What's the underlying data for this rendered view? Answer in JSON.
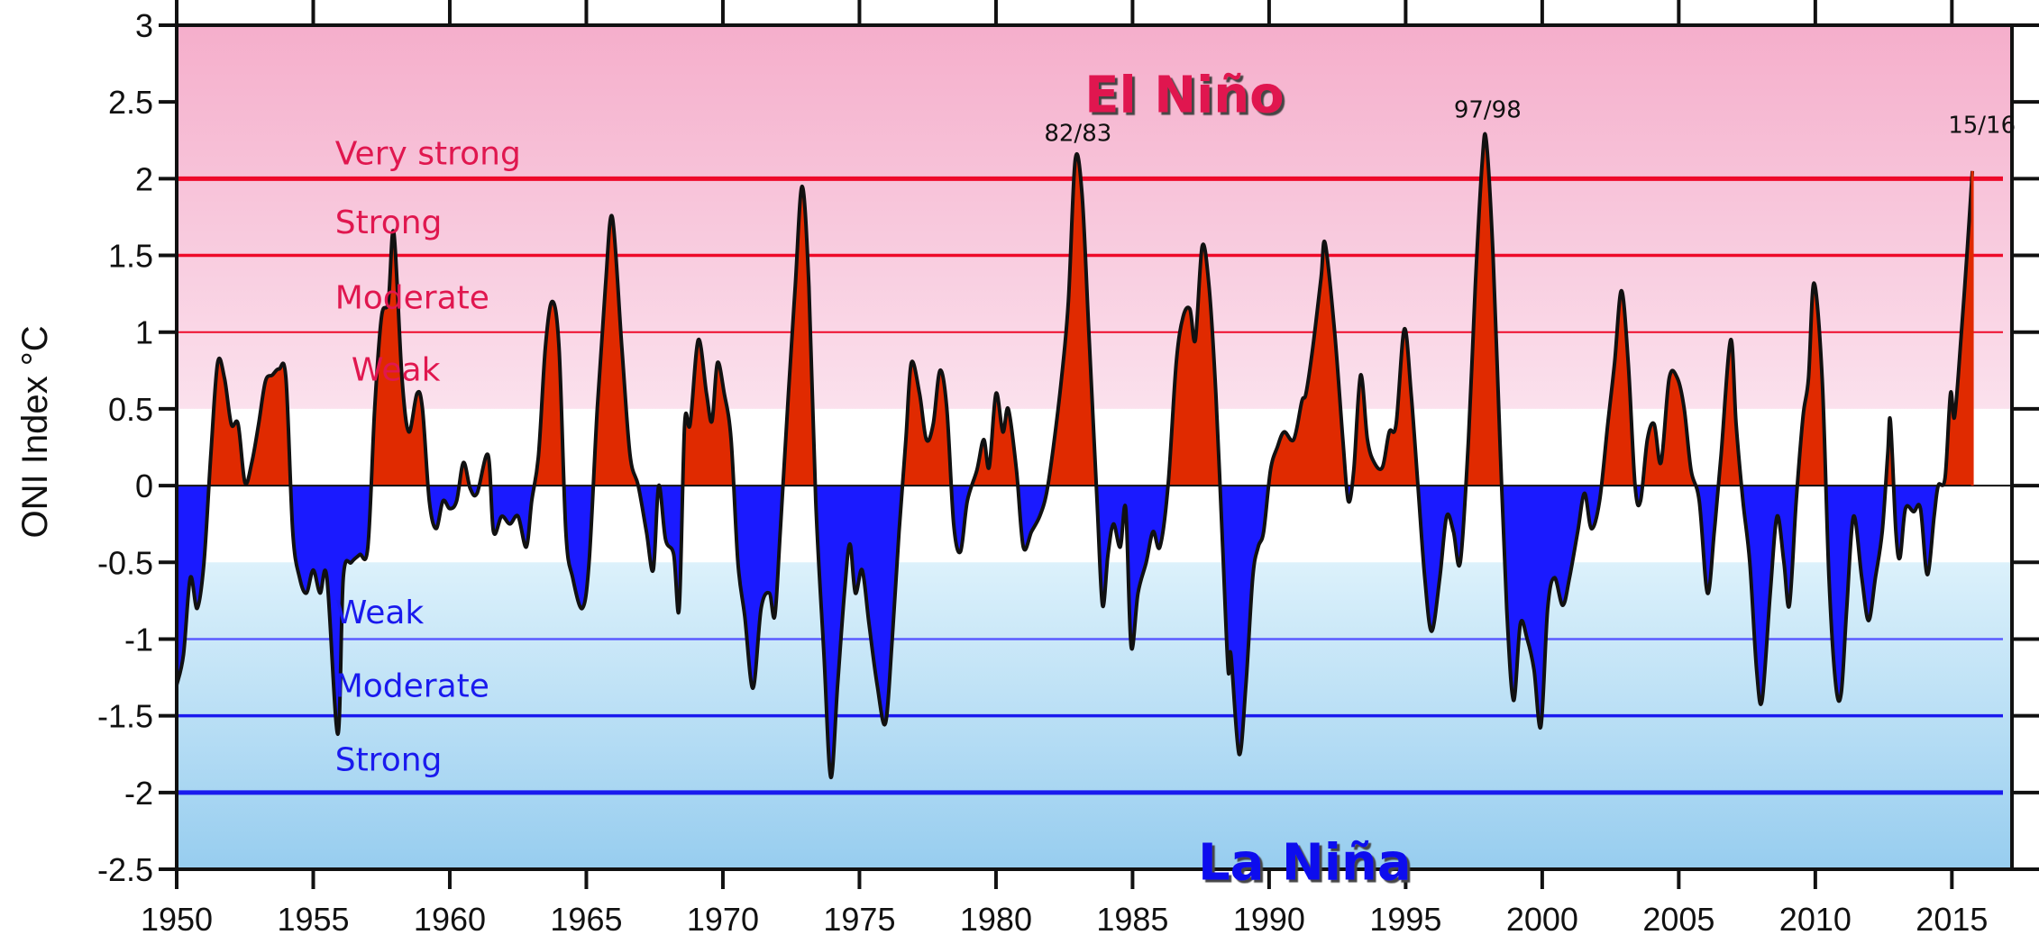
{
  "chart_data": {
    "type": "area",
    "title": "",
    "xlabel": "",
    "ylabel": "ONI Index  °C",
    "xlim": [
      1950,
      2017.2
    ],
    "ylim": [
      -2.5,
      3
    ],
    "x_ticks": [
      "1950",
      "1955",
      "1960",
      "1965",
      "1970",
      "1975",
      "1980",
      "1985",
      "1990",
      "1995",
      "2000",
      "2005",
      "2010",
      "2015"
    ],
    "y_ticks": [
      "3",
      "2.5",
      "2",
      "1.5",
      "1",
      "0.5",
      "0",
      "-0.5",
      "-1",
      "-1.5",
      "-2",
      "-2.5"
    ],
    "grid": false,
    "colors": {
      "positive_fill": "#e02a00",
      "negative_fill": "#1a1aff",
      "line": "#111111",
      "el_nino_text": "#e0174f",
      "la_nina_text": "#1010ee",
      "el_nino_bg_top": "#f5aecb",
      "el_nino_bg_bottom": "#fbe1ed",
      "la_nina_bg_top": "#dcf1fb",
      "la_nina_bg_bottom": "#97cdef"
    },
    "regions": [
      {
        "label": "El Niño",
        "color": "#e0174f"
      },
      {
        "label": "La Niña",
        "color": "#1010ee"
      }
    ],
    "thresholds": [
      {
        "value": 2,
        "label": "Very strong",
        "color": "#ee0a2a",
        "side": "el_nino"
      },
      {
        "value": 1.5,
        "label": "Strong",
        "color": "#ee0a2a",
        "side": "el_nino"
      },
      {
        "value": 1,
        "label": "Moderate",
        "color": "#ee0a2a",
        "side": "el_nino"
      },
      {
        "value": 0.5,
        "label": "Weak",
        "color": "#ee0a2a",
        "side": "el_nino"
      },
      {
        "value": -0.5,
        "label": "Weak",
        "color": "#1a1aee",
        "side": "la_nina"
      },
      {
        "value": -1,
        "label": "Moderate",
        "color": "#1a1aee",
        "side": "la_nina"
      },
      {
        "value": -1.5,
        "label": "Strong",
        "color": "#1a1aee",
        "side": "la_nina"
      },
      {
        "value": -2,
        "label": "",
        "color": "#1a1aee",
        "side": "la_nina"
      }
    ],
    "annotations": [
      {
        "text": "82/83",
        "x": 1983,
        "y": 2.3
      },
      {
        "text": "97/98",
        "x": 1998,
        "y": 2.45
      },
      {
        "text": "15/16",
        "x": 2016.1,
        "y": 2.35
      }
    ],
    "series": [
      {
        "points": [
          [
            1950,
            -1.3
          ],
          [
            1950.25,
            -1.1
          ],
          [
            1950.5,
            -0.6
          ],
          [
            1950.75,
            -0.8
          ],
          [
            1951,
            -0.5
          ],
          [
            1951.25,
            0.2
          ],
          [
            1951.5,
            0.8
          ],
          [
            1951.75,
            0.7
          ],
          [
            1952,
            0.4
          ],
          [
            1952.25,
            0.4
          ],
          [
            1952.5,
            0.02
          ],
          [
            1952.75,
            0.15
          ],
          [
            1953,
            0.4
          ],
          [
            1953.25,
            0.68
          ],
          [
            1953.5,
            0.72
          ],
          [
            1953.75,
            0.76
          ],
          [
            1954,
            0.7
          ],
          [
            1954.25,
            -0.3
          ],
          [
            1954.5,
            -0.6
          ],
          [
            1954.75,
            -0.7
          ],
          [
            1955,
            -0.55
          ],
          [
            1955.25,
            -0.7
          ],
          [
            1955.5,
            -0.6
          ],
          [
            1955.9,
            -1.62
          ],
          [
            1956.1,
            -0.6
          ],
          [
            1956.4,
            -0.5
          ],
          [
            1956.7,
            -0.45
          ],
          [
            1957,
            -0.4
          ],
          [
            1957.25,
            0.5
          ],
          [
            1957.5,
            1.1
          ],
          [
            1957.75,
            1.2
          ],
          [
            1957.95,
            1.65
          ],
          [
            1958.25,
            0.7
          ],
          [
            1958.5,
            0.35
          ],
          [
            1958.8,
            0.6
          ],
          [
            1959,
            0.5
          ],
          [
            1959.25,
            -0.1
          ],
          [
            1959.5,
            -0.28
          ],
          [
            1959.75,
            -0.1
          ],
          [
            1960,
            -0.15
          ],
          [
            1960.25,
            -0.1
          ],
          [
            1960.5,
            0.15
          ],
          [
            1960.75,
            -0.02
          ],
          [
            1961,
            -0.05
          ],
          [
            1961.4,
            0.2
          ],
          [
            1961.6,
            -0.3
          ],
          [
            1961.9,
            -0.2
          ],
          [
            1962.2,
            -0.25
          ],
          [
            1962.5,
            -0.2
          ],
          [
            1962.8,
            -0.4
          ],
          [
            1963,
            -0.1
          ],
          [
            1963.25,
            0.2
          ],
          [
            1963.5,
            0.9
          ],
          [
            1963.75,
            1.2
          ],
          [
            1964,
            0.9
          ],
          [
            1964.25,
            -0.3
          ],
          [
            1964.5,
            -0.6
          ],
          [
            1964.85,
            -0.8
          ],
          [
            1965.1,
            -0.5
          ],
          [
            1965.4,
            0.5
          ],
          [
            1965.7,
            1.3
          ],
          [
            1965.95,
            1.75
          ],
          [
            1966.3,
            0.9
          ],
          [
            1966.6,
            0.2
          ],
          [
            1966.9,
            0.0
          ],
          [
            1967.2,
            -0.3
          ],
          [
            1967.45,
            -0.55
          ],
          [
            1967.65,
            0.0
          ],
          [
            1967.9,
            -0.35
          ],
          [
            1968.2,
            -0.45
          ],
          [
            1968.4,
            -0.8
          ],
          [
            1968.6,
            0.4
          ],
          [
            1968.8,
            0.4
          ],
          [
            1969.1,
            0.95
          ],
          [
            1969.4,
            0.6
          ],
          [
            1969.6,
            0.42
          ],
          [
            1969.8,
            0.8
          ],
          [
            1970.05,
            0.6
          ],
          [
            1970.3,
            0.3
          ],
          [
            1970.55,
            -0.5
          ],
          [
            1970.8,
            -0.85
          ],
          [
            1971.1,
            -1.32
          ],
          [
            1971.4,
            -0.8
          ],
          [
            1971.7,
            -0.7
          ],
          [
            1971.9,
            -0.85
          ],
          [
            1972.1,
            -0.3
          ],
          [
            1972.4,
            0.6
          ],
          [
            1972.65,
            1.3
          ],
          [
            1972.9,
            1.95
          ],
          [
            1973.15,
            1.3
          ],
          [
            1973.4,
            -0.1
          ],
          [
            1973.7,
            -1.1
          ],
          [
            1973.95,
            -1.9
          ],
          [
            1974.2,
            -1.3
          ],
          [
            1974.45,
            -0.7
          ],
          [
            1974.65,
            -0.38
          ],
          [
            1974.85,
            -0.7
          ],
          [
            1975.1,
            -0.55
          ],
          [
            1975.35,
            -0.9
          ],
          [
            1975.65,
            -1.3
          ],
          [
            1975.95,
            -1.55
          ],
          [
            1976.2,
            -1.0
          ],
          [
            1976.45,
            -0.3
          ],
          [
            1976.7,
            0.3
          ],
          [
            1976.9,
            0.8
          ],
          [
            1977.2,
            0.6
          ],
          [
            1977.45,
            0.3
          ],
          [
            1977.7,
            0.4
          ],
          [
            1977.95,
            0.75
          ],
          [
            1978.2,
            0.5
          ],
          [
            1978.45,
            -0.25
          ],
          [
            1978.7,
            -0.43
          ],
          [
            1978.95,
            -0.1
          ],
          [
            1979.3,
            0.1
          ],
          [
            1979.55,
            0.3
          ],
          [
            1979.75,
            0.12
          ],
          [
            1980,
            0.6
          ],
          [
            1980.25,
            0.35
          ],
          [
            1980.45,
            0.5
          ],
          [
            1980.75,
            0.1
          ],
          [
            1981,
            -0.4
          ],
          [
            1981.3,
            -0.3
          ],
          [
            1981.6,
            -0.2
          ],
          [
            1981.85,
            -0.05
          ],
          [
            1982.1,
            0.25
          ],
          [
            1982.4,
            0.7
          ],
          [
            1982.65,
            1.2
          ],
          [
            1982.9,
            2.12
          ],
          [
            1983.15,
            1.9
          ],
          [
            1983.4,
            1.0
          ],
          [
            1983.7,
            -0.1
          ],
          [
            1983.9,
            -0.78
          ],
          [
            1984.1,
            -0.45
          ],
          [
            1984.3,
            -0.25
          ],
          [
            1984.55,
            -0.4
          ],
          [
            1984.75,
            -0.15
          ],
          [
            1984.95,
            -1.05
          ],
          [
            1985.2,
            -0.7
          ],
          [
            1985.5,
            -0.5
          ],
          [
            1985.75,
            -0.3
          ],
          [
            1986,
            -0.4
          ],
          [
            1986.3,
            0.0
          ],
          [
            1986.6,
            0.8
          ],
          [
            1986.85,
            1.1
          ],
          [
            1987.1,
            1.15
          ],
          [
            1987.3,
            0.95
          ],
          [
            1987.55,
            1.56
          ],
          [
            1987.8,
            1.3
          ],
          [
            1988.05,
            0.6
          ],
          [
            1988.3,
            -0.4
          ],
          [
            1988.5,
            -1.2
          ],
          [
            1988.6,
            -1.1
          ],
          [
            1988.9,
            -1.75
          ],
          [
            1989.15,
            -1.3
          ],
          [
            1989.4,
            -0.6
          ],
          [
            1989.6,
            -0.4
          ],
          [
            1989.8,
            -0.3
          ],
          [
            1990.05,
            0.1
          ],
          [
            1990.3,
            0.25
          ],
          [
            1990.55,
            0.35
          ],
          [
            1990.9,
            0.3
          ],
          [
            1991.2,
            0.55
          ],
          [
            1991.35,
            0.6
          ],
          [
            1991.6,
            0.9
          ],
          [
            1991.9,
            1.35
          ],
          [
            1992.05,
            1.58
          ],
          [
            1992.4,
            1.0
          ],
          [
            1992.7,
            0.3
          ],
          [
            1992.9,
            -0.1
          ],
          [
            1993.1,
            0.1
          ],
          [
            1993.35,
            0.72
          ],
          [
            1993.6,
            0.3
          ],
          [
            1993.85,
            0.15
          ],
          [
            1994.15,
            0.12
          ],
          [
            1994.4,
            0.35
          ],
          [
            1994.65,
            0.4
          ],
          [
            1994.95,
            1.02
          ],
          [
            1995.2,
            0.6
          ],
          [
            1995.45,
            0.0
          ],
          [
            1995.7,
            -0.6
          ],
          [
            1995.95,
            -0.95
          ],
          [
            1996.25,
            -0.6
          ],
          [
            1996.5,
            -0.2
          ],
          [
            1996.75,
            -0.3
          ],
          [
            1997,
            -0.5
          ],
          [
            1997.3,
            0.3
          ],
          [
            1997.55,
            1.3
          ],
          [
            1997.8,
            2.1
          ],
          [
            1997.95,
            2.25
          ],
          [
            1998.2,
            1.5
          ],
          [
            1998.45,
            0.3
          ],
          [
            1998.7,
            -0.8
          ],
          [
            1998.95,
            -1.4
          ],
          [
            1999.2,
            -0.9
          ],
          [
            1999.45,
            -1.0
          ],
          [
            1999.7,
            -1.2
          ],
          [
            1999.95,
            -1.57
          ],
          [
            2000.2,
            -0.8
          ],
          [
            2000.45,
            -0.6
          ],
          [
            2000.75,
            -0.78
          ],
          [
            2001,
            -0.6
          ],
          [
            2001.3,
            -0.3
          ],
          [
            2001.55,
            -0.05
          ],
          [
            2001.8,
            -0.28
          ],
          [
            2002.1,
            -0.1
          ],
          [
            2002.4,
            0.4
          ],
          [
            2002.65,
            0.8
          ],
          [
            2002.9,
            1.27
          ],
          [
            2003.15,
            0.8
          ],
          [
            2003.4,
            0.0
          ],
          [
            2003.6,
            -0.1
          ],
          [
            2003.85,
            0.3
          ],
          [
            2004.1,
            0.4
          ],
          [
            2004.35,
            0.15
          ],
          [
            2004.65,
            0.7
          ],
          [
            2004.95,
            0.7
          ],
          [
            2005.2,
            0.5
          ],
          [
            2005.45,
            0.1
          ],
          [
            2005.75,
            -0.1
          ],
          [
            2006.05,
            -0.7
          ],
          [
            2006.3,
            -0.3
          ],
          [
            2006.55,
            0.2
          ],
          [
            2006.9,
            0.95
          ],
          [
            2007.1,
            0.4
          ],
          [
            2007.35,
            -0.1
          ],
          [
            2007.6,
            -0.5
          ],
          [
            2007.85,
            -1.2
          ],
          [
            2008.05,
            -1.4
          ],
          [
            2008.35,
            -0.7
          ],
          [
            2008.6,
            -0.2
          ],
          [
            2008.85,
            -0.5
          ],
          [
            2009.05,
            -0.78
          ],
          [
            2009.3,
            -0.1
          ],
          [
            2009.55,
            0.45
          ],
          [
            2009.75,
            0.7
          ],
          [
            2009.95,
            1.32
          ],
          [
            2010.25,
            0.7
          ],
          [
            2010.5,
            -0.6
          ],
          [
            2010.75,
            -1.3
          ],
          [
            2010.95,
            -1.35
          ],
          [
            2011.15,
            -0.8
          ],
          [
            2011.4,
            -0.2
          ],
          [
            2011.7,
            -0.6
          ],
          [
            2011.95,
            -0.88
          ],
          [
            2012.2,
            -0.6
          ],
          [
            2012.45,
            -0.3
          ],
          [
            2012.65,
            0.2
          ],
          [
            2012.75,
            0.42
          ],
          [
            2012.95,
            -0.3
          ],
          [
            2013.1,
            -0.47
          ],
          [
            2013.3,
            -0.15
          ],
          [
            2013.6,
            -0.17
          ],
          [
            2013.85,
            -0.15
          ],
          [
            2014.1,
            -0.58
          ],
          [
            2014.35,
            -0.2
          ],
          [
            2014.5,
            0.0
          ],
          [
            2014.75,
            0.05
          ],
          [
            2014.95,
            0.6
          ],
          [
            2015.1,
            0.45
          ],
          [
            2015.35,
            1.0
          ],
          [
            2015.55,
            1.5
          ],
          [
            2015.75,
            2.05
          ]
        ]
      }
    ]
  }
}
